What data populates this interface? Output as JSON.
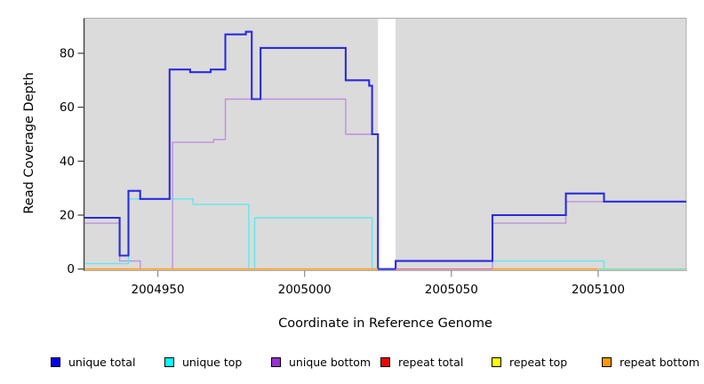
{
  "chart_data": {
    "type": "line",
    "subtype": "step-coverage-plot",
    "title": "",
    "xlabel": "Coordinate in Reference Genome",
    "ylabel": "Read Coverage Depth",
    "xlim": [
      2004925,
      2005130
    ],
    "ylim": [
      0,
      93
    ],
    "x_ticks": [
      2004950,
      2005000,
      2005050,
      2005100
    ],
    "y_ticks": [
      0,
      20,
      40,
      60,
      80
    ],
    "grid": false,
    "plot_background": "#dbdbdb",
    "gap_band": {
      "from": 2005025,
      "to": 2005031,
      "color": "#ffffff"
    },
    "legend_position": "bottom",
    "legend": [
      {
        "label": "unique total",
        "color": "#0000ee"
      },
      {
        "label": "unique top",
        "color": "#00ffff"
      },
      {
        "label": "unique bottom",
        "color": "#9932cc"
      },
      {
        "label": "repeat total",
        "color": "#ee0000"
      },
      {
        "label": "repeat top",
        "color": "#ffff00"
      },
      {
        "label": "repeat bottom",
        "color": "#ff9900"
      }
    ],
    "series": [
      {
        "name": "unique bottom",
        "line_color": "#bf8fe2",
        "line_width": 1.4,
        "segments": [
          {
            "steps": [
              [
                2004925,
                17
              ],
              [
                2004937,
                3
              ],
              [
                2004944,
                0
              ],
              [
                2004955,
                47
              ],
              [
                2004969,
                48
              ],
              [
                2004973,
                63
              ],
              [
                2005014,
                50
              ],
              [
                2005025,
                0
              ],
              [
                2005064,
                17
              ],
              [
                2005089,
                25
              ]
            ],
            "end": 2005130
          }
        ]
      },
      {
        "name": "unique top",
        "line_color": "#5fe8ef",
        "line_width": 1.4,
        "segments": [
          {
            "steps": [
              [
                2004925,
                2
              ],
              [
                2004940,
                26
              ],
              [
                2004962,
                24
              ],
              [
                2004981,
                0
              ],
              [
                2004983,
                19
              ],
              [
                2005023,
                0
              ],
              [
                2005031,
                3
              ],
              [
                2005102,
                0
              ]
            ],
            "end": 2005130
          }
        ]
      },
      {
        "name": "unique total",
        "line_color": "#2b2be0",
        "line_width": 2.1,
        "segments": [
          {
            "steps": [
              [
                2004925,
                19
              ],
              [
                2004937,
                5
              ],
              [
                2004940,
                29
              ],
              [
                2004944,
                26
              ],
              [
                2004954,
                74
              ],
              [
                2004961,
                73
              ],
              [
                2004968,
                74
              ],
              [
                2004973,
                87
              ],
              [
                2004980,
                88
              ],
              [
                2004982,
                63
              ],
              [
                2004985,
                82
              ],
              [
                2005014,
                70
              ],
              [
                2005022,
                68
              ],
              [
                2005023,
                50
              ],
              [
                2005025,
                0
              ],
              [
                2005031,
                3
              ],
              [
                2005064,
                20
              ],
              [
                2005089,
                28
              ],
              [
                2005102,
                25
              ]
            ],
            "end": 2005130
          }
        ]
      },
      {
        "name": "repeat total",
        "line_color": "#de6e8f",
        "line_width": 1.3,
        "segments": [
          {
            "steps": [
              [
                2005031,
                0
              ]
            ],
            "end": 2005064
          }
        ]
      },
      {
        "name": "repeat top",
        "line_color": "#85d9a5",
        "line_width": 1.3,
        "segments": [
          {
            "steps": [
              [
                2005100,
                0
              ]
            ],
            "end": 2005130
          }
        ]
      },
      {
        "name": "repeat bottom",
        "line_color": "#ff9e1b",
        "line_width": 1.6,
        "segments": [
          {
            "steps": [
              [
                2004925,
                0
              ]
            ],
            "end": 2005025
          },
          {
            "steps": [
              [
                2005064,
                0
              ]
            ],
            "end": 2005100
          }
        ]
      }
    ],
    "axis_colors": {
      "y_axis": "#3a3a3a",
      "x_ticks": "#8a8a8a",
      "box_border": "#ababab"
    }
  }
}
